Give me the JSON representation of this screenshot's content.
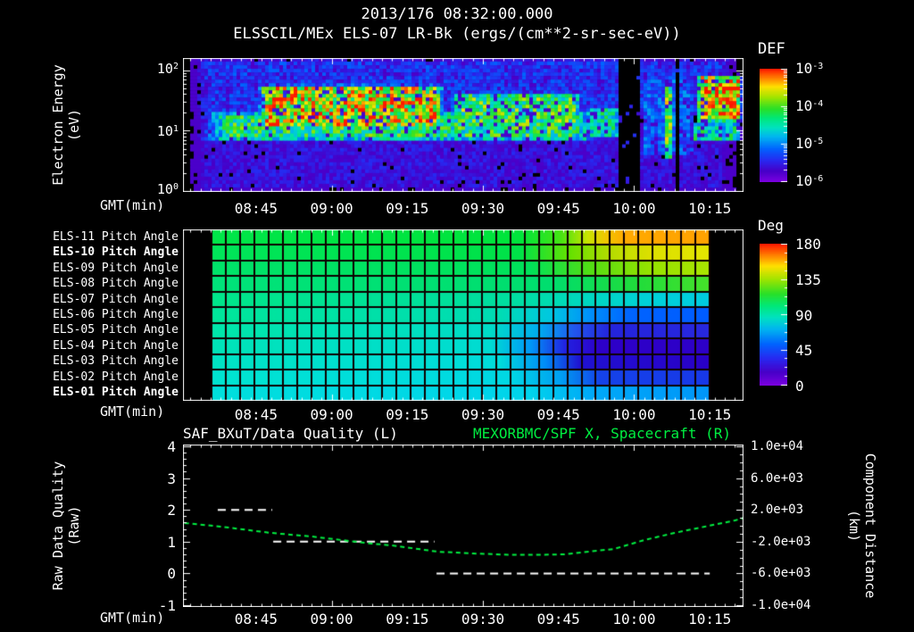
{
  "header": {
    "timestamp": "2013/176 08:32:00.000",
    "title": "ELSSCIL/MEx ELS-07 LR-Bk  (ergs/(cm**2-sr-sec-eV))"
  },
  "colors": {
    "background": "#000000",
    "text": "#ffffff",
    "accent_green": "#00ef41"
  },
  "axis": {
    "gmt_label": "GMT(min)",
    "time_ticks": [
      "08:45",
      "09:00",
      "09:15",
      "09:30",
      "09:45",
      "10:00",
      "10:15"
    ],
    "time_tick_minutes": [
      525,
      540,
      555,
      570,
      585,
      600,
      615
    ],
    "time_domain_minutes": [
      510.5,
      621.7
    ]
  },
  "spectrogram_panel": {
    "ylabel_line1": "Electron Energy",
    "ylabel_line2": "(eV)",
    "ytick_base": "10",
    "ytick_exponents": [
      "2",
      "1",
      "0"
    ],
    "colorbar_title": "DEF",
    "colorbar_tick_base": "10",
    "colorbar_tick_exponents": [
      "-3",
      "-4",
      "-5",
      "-6"
    ]
  },
  "pitch_panel": {
    "colorbar_title": "Deg",
    "colorbar_ticks": [
      "180",
      "135",
      "90",
      "45",
      "0"
    ]
  },
  "quality_panel": {
    "title_left": "SAF_BXuT/Data Quality (L)",
    "title_right": "MEXORBMC/SPF X, Spacecraft (R)",
    "ylabel_left_line1": "Raw Data Quality",
    "ylabel_left_line2": "(Raw)",
    "ylabel_right_line1": "Component Distance",
    "ylabel_right_line2": "(km)",
    "yticks_left": [
      "4",
      "3",
      "2",
      "1",
      "0",
      "-1"
    ],
    "yticks_right": [
      "1.0e+04",
      "6.0e+03",
      "2.0e+03",
      "-2.0e+03",
      "-6.0e+03",
      "-1.0e+04"
    ]
  },
  "chart_data": [
    {
      "type": "heatmap",
      "name": "electron-energy-spectrogram",
      "title": "ELSSCIL/MEx ELS-07 LR-Bk (ergs/(cm**2-sr-sec-eV))",
      "xlabel": "GMT(min)",
      "ylabel": "Electron Energy (eV)",
      "x_domain_minutes": [
        510.5,
        621.7
      ],
      "xticks": [
        "08:45",
        "09:00",
        "09:15",
        "09:30",
        "09:45",
        "10:00",
        "10:15"
      ],
      "y_log10_ev_range": [
        0,
        2.2
      ],
      "ytick_ev": [
        100,
        10,
        1
      ],
      "colorbar": {
        "title": "DEF",
        "log10_range": [
          -6,
          -3
        ],
        "tick_exponents": [
          -3,
          -4,
          -5,
          -6
        ]
      },
      "colormap": [
        [
          0.0,
          "#000000"
        ],
        [
          0.04,
          "#7a00e0"
        ],
        [
          0.13,
          "#4600c8"
        ],
        [
          0.22,
          "#2828f0"
        ],
        [
          0.32,
          "#0064ff"
        ],
        [
          0.42,
          "#00b4f0"
        ],
        [
          0.5,
          "#00e2c0"
        ],
        [
          0.58,
          "#00e878"
        ],
        [
          0.66,
          "#28e028"
        ],
        [
          0.76,
          "#a0e400"
        ],
        [
          0.85,
          "#ffe000"
        ],
        [
          0.93,
          "#ff7800"
        ],
        [
          1.0,
          "#ff1800"
        ]
      ],
      "noise_seed": 7,
      "features": [
        {
          "name": "background-high-energy",
          "t": [
            0.0,
            1.0
          ],
          "e": [
            1.25,
            2.2
          ],
          "v": 0.24,
          "soft": 0.05
        },
        {
          "name": "background-low-energy",
          "t": [
            0.0,
            1.0
          ],
          "e": [
            0.0,
            0.9
          ],
          "v": 0.17,
          "soft": 0.05
        },
        {
          "name": "suprathermal-cyan-band",
          "t": [
            0.0,
            0.78
          ],
          "e": [
            0.82,
            1.32
          ],
          "v": 0.58,
          "soft": 0.12
        },
        {
          "name": "main-enhancement",
          "t": [
            0.125,
            0.475
          ],
          "e": [
            1.0,
            1.78
          ],
          "v": 0.8,
          "soft": 0.08
        },
        {
          "name": "red-hotspot",
          "t": [
            0.14,
            0.225
          ],
          "e": [
            1.4,
            1.7
          ],
          "v": 0.99,
          "soft": 0.3
        },
        {
          "name": "mid-band",
          "t": [
            0.47,
            0.72
          ],
          "e": [
            1.05,
            1.62
          ],
          "v": 0.63,
          "soft": 0.1
        },
        {
          "name": "decay-band",
          "t": [
            0.72,
            0.778
          ],
          "e": [
            0.85,
            1.4
          ],
          "v": 0.5,
          "soft": 0.1
        },
        {
          "name": "post-gap-speckle",
          "t": [
            0.815,
            0.915
          ],
          "e": [
            0.5,
            2.0
          ],
          "v": 0.3,
          "soft": 0.1
        },
        {
          "name": "green-stripe",
          "t": [
            0.857,
            0.876
          ],
          "e": [
            0.42,
            1.85
          ],
          "v": 0.68,
          "soft": 0.15
        },
        {
          "name": "right-blob",
          "t": [
            0.915,
            1.0
          ],
          "e": [
            1.1,
            1.95
          ],
          "v": 0.8,
          "soft": 0.1
        },
        {
          "name": "right-blob-yellow-core",
          "t": [
            0.935,
            1.0
          ],
          "e": [
            1.26,
            1.8
          ],
          "v": 0.92,
          "soft": 0.2
        },
        {
          "name": "right-under-band",
          "t": [
            0.9,
            1.0
          ],
          "e": [
            0.8,
            1.15
          ],
          "v": 0.5,
          "soft": 0.15
        }
      ],
      "gaps_t": [
        [
          0.78,
          0.814
        ],
        [
          0.879,
          0.887
        ]
      ]
    },
    {
      "type": "heatmap",
      "name": "pitch-angle-panels",
      "xlabel": "GMT(min)",
      "x_domain_minutes": [
        510.5,
        621.7
      ],
      "xticks": [
        "08:45",
        "09:00",
        "09:15",
        "09:30",
        "09:45",
        "10:00",
        "10:15"
      ],
      "data_t_range": [
        0.0509,
        0.9395
      ],
      "grid_cols": 35,
      "colorbar": {
        "title": "Deg",
        "range": [
          0,
          180
        ],
        "ticks": [
          180,
          135,
          90,
          45,
          0
        ]
      },
      "rows": [
        {
          "label": "ELS-11 Pitch Angle",
          "bold": false,
          "stops": [
            [
              0,
              "#00e64a"
            ],
            [
              0.62,
              "#00e43c"
            ],
            [
              0.7,
              "#44e414"
            ],
            [
              0.755,
              "#c8e400"
            ],
            [
              0.79,
              "#f0c800"
            ],
            [
              0.83,
              "#ffaa00"
            ],
            [
              1,
              "#ffa200"
            ]
          ]
        },
        {
          "label": "ELS-10 Pitch Angle",
          "bold": true,
          "stops": [
            [
              0,
              "#00e65a"
            ],
            [
              0.62,
              "#00e248"
            ],
            [
              0.72,
              "#66e200"
            ],
            [
              0.8,
              "#b4dc00"
            ],
            [
              0.88,
              "#dce000"
            ],
            [
              1,
              "#e4e600"
            ]
          ]
        },
        {
          "label": "ELS-09 Pitch Angle",
          "bold": false,
          "stops": [
            [
              0,
              "#00e46a"
            ],
            [
              0.64,
              "#00e25a"
            ],
            [
              0.76,
              "#52de14"
            ],
            [
              0.88,
              "#96e200"
            ],
            [
              1,
              "#aae600"
            ]
          ]
        },
        {
          "label": "ELS-08 Pitch Angle",
          "bold": false,
          "stops": [
            [
              0,
              "#00e47a"
            ],
            [
              0.68,
              "#00de6e"
            ],
            [
              0.85,
              "#20dc3c"
            ],
            [
              1,
              "#46e22a"
            ]
          ]
        },
        {
          "label": "ELS-07 Pitch Angle",
          "bold": false,
          "stops": [
            [
              0,
              "#00e68a"
            ],
            [
              0.6,
              "#00dea0"
            ],
            [
              0.75,
              "#00d8c0"
            ],
            [
              0.88,
              "#00d2d8"
            ],
            [
              1,
              "#00cce0"
            ]
          ]
        },
        {
          "label": "ELS-06 Pitch Angle",
          "bold": false,
          "stops": [
            [
              0,
              "#00e69a"
            ],
            [
              0.58,
              "#00dcb4"
            ],
            [
              0.68,
              "#00c8e0"
            ],
            [
              0.76,
              "#0090fa"
            ],
            [
              0.84,
              "#0064ff"
            ],
            [
              1,
              "#005cff"
            ]
          ]
        },
        {
          "label": "ELS-05 Pitch Angle",
          "bold": false,
          "stops": [
            [
              0,
              "#00e6aa"
            ],
            [
              0.56,
              "#00dcc8"
            ],
            [
              0.66,
              "#00aaf0"
            ],
            [
              0.73,
              "#2255ee"
            ],
            [
              0.8,
              "#2424dc"
            ],
            [
              1,
              "#2828e0"
            ]
          ]
        },
        {
          "label": "ELS-04 Pitch Angle",
          "bold": false,
          "stops": [
            [
              0,
              "#00e4b8"
            ],
            [
              0.56,
              "#00dcd2"
            ],
            [
              0.64,
              "#0098f8"
            ],
            [
              0.71,
              "#2222e2"
            ],
            [
              0.78,
              "#2d00c8"
            ],
            [
              1,
              "#2d00c8"
            ]
          ]
        },
        {
          "label": "ELS-03 Pitch Angle",
          "bold": false,
          "stops": [
            [
              0,
              "#00e4c4"
            ],
            [
              0.58,
              "#00dcdc"
            ],
            [
              0.67,
              "#008cf8"
            ],
            [
              0.74,
              "#2012d2"
            ],
            [
              1,
              "#2a00c8"
            ]
          ]
        },
        {
          "label": "ELS-02 Pitch Angle",
          "bold": false,
          "stops": [
            [
              0,
              "#00e4d0"
            ],
            [
              0.6,
              "#00d8e4"
            ],
            [
              0.7,
              "#00a0f2"
            ],
            [
              0.78,
              "#1543ea"
            ],
            [
              1,
              "#1838e8"
            ]
          ]
        },
        {
          "label": "ELS-01 Pitch Angle",
          "bold": true,
          "stops": [
            [
              0,
              "#00e0dc"
            ],
            [
              0.64,
              "#00d4ec"
            ],
            [
              0.76,
              "#00aaf8"
            ],
            [
              1,
              "#0096f8"
            ]
          ]
        }
      ]
    },
    {
      "type": "line",
      "name": "data-quality-and-spacecraft-x",
      "title_left": "SAF_BXuT/Data Quality (L)",
      "title_right": "MEXORBMC/SPF X, Spacecraft (R)",
      "xlabel": "GMT(min)",
      "x_domain_minutes": [
        510.5,
        621.7
      ],
      "xticks": [
        "08:45",
        "09:00",
        "09:15",
        "09:30",
        "09:45",
        "10:00",
        "10:15"
      ],
      "left_axis": {
        "label": "Raw Data Quality (Raw)",
        "range": [
          -1,
          4
        ],
        "ticks": [
          4,
          3,
          2,
          1,
          0,
          -1
        ]
      },
      "right_axis": {
        "label": "Component Distance (km)",
        "range": [
          -10000,
          10000
        ],
        "ticks": [
          10000,
          6000,
          2000,
          -2000,
          -6000,
          -10000
        ]
      },
      "series": [
        {
          "name": "SAF_BXuT/Data Quality",
          "axis": "left",
          "color": "#ffffff",
          "style": "dashed",
          "segments": [
            {
              "value": 2,
              "t": [
                517.4,
                528.2
              ]
            },
            {
              "value": 1,
              "t": [
                528.4,
                560.4
              ]
            },
            {
              "value": 0,
              "t": [
                560.8,
                615.0
              ]
            }
          ]
        },
        {
          "name": "MEXORBMC/SPF X Spacecraft",
          "axis": "right",
          "color": "#00ef41",
          "style": "dashed",
          "points": [
            [
              510.8,
              350
            ],
            [
              518,
              -100
            ],
            [
              528,
              -900
            ],
            [
              536,
              -1350
            ],
            [
              548,
              -2250
            ],
            [
              552,
              -2470
            ],
            [
              561,
              -3260
            ],
            [
              568,
              -3480
            ],
            [
              575,
              -3650
            ],
            [
              580,
              -3660
            ],
            [
              586,
              -3600
            ],
            [
              591,
              -3250
            ],
            [
              596,
              -2920
            ],
            [
              602,
              -1800
            ],
            [
              608,
              -900
            ],
            [
              614,
              -110
            ],
            [
              620,
              670
            ],
            [
              621.7,
              1000
            ]
          ]
        }
      ]
    }
  ]
}
